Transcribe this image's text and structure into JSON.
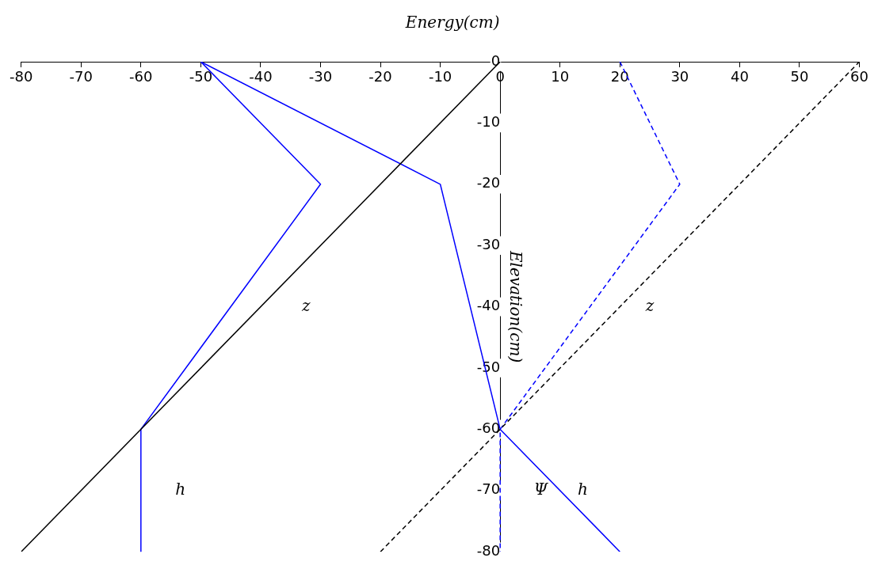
{
  "chart_data": {
    "type": "line",
    "xlabel": "Energy(cm)",
    "ylabel": "Elevation(cm)",
    "xlim": [
      -80,
      60
    ],
    "ylim": [
      -80,
      0
    ],
    "xticks": [
      -80,
      -70,
      -60,
      -50,
      -40,
      -30,
      -20,
      -10,
      0,
      10,
      20,
      30,
      40,
      50,
      60
    ],
    "yticks": [
      -80,
      -70,
      -60,
      -50,
      -40,
      -30,
      -20,
      -10,
      0
    ],
    "grid": false,
    "legend": false,
    "marker": "none",
    "series": [
      {
        "color": "#000000",
        "line_style": "solid",
        "x": [
          -80,
          0
        ],
        "values": [
          -80,
          0
        ]
      },
      {
        "color": "#000000",
        "line_style": "dashed",
        "x": [
          -20,
          60
        ],
        "values": [
          -80,
          0
        ]
      },
      {
        "color": "#0000ff",
        "line_style": "solid",
        "x": [
          -50,
          -30,
          -60,
          -60
        ],
        "values": [
          0,
          -20,
          -60,
          -80
        ]
      },
      {
        "color": "#0000ff",
        "line_style": "solid",
        "x": [
          -50,
          -10,
          0,
          20
        ],
        "values": [
          0,
          -20,
          -60,
          -80
        ]
      },
      {
        "color": "#0000ff",
        "line_style": "dashed",
        "x": [
          20,
          30,
          0,
          0
        ],
        "values": [
          0,
          -20,
          -60,
          -80
        ]
      }
    ],
    "annotations": [
      "z",
      "z",
      "h",
      "Ψ",
      "h"
    ]
  }
}
